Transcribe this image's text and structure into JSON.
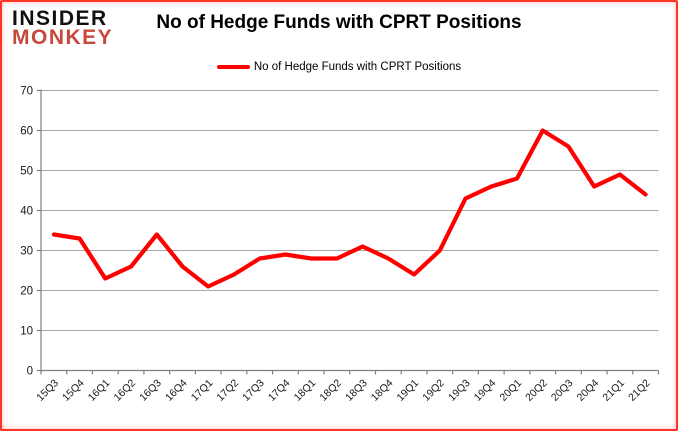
{
  "header": {
    "logo_line1": "INSIDER",
    "logo_line2": "MONKEY",
    "title": "No of Hedge Funds with CPRT Positions"
  },
  "legend": {
    "label": "No of Hedge Funds with CPRT Positions"
  },
  "colors": {
    "line": "#fe0000",
    "logo_black": "#111111",
    "logo_red": "#c7493d",
    "gridline": "#a6a6a6",
    "axis": "#808080",
    "tick_label": "#1a1a1a",
    "frame_red": "#ff190a"
  },
  "chart_data": {
    "type": "line",
    "title": "No of Hedge Funds with CPRT Positions",
    "categories": [
      "15Q3",
      "15Q4",
      "16Q1",
      "16Q2",
      "16Q3",
      "16Q4",
      "17Q1",
      "17Q2",
      "17Q3",
      "17Q4",
      "18Q1",
      "18Q2",
      "18Q3",
      "18Q4",
      "19Q1",
      "19Q2",
      "19Q3",
      "19Q4",
      "20Q1",
      "20Q2",
      "20Q3",
      "20Q4",
      "21Q1",
      "21Q2"
    ],
    "series": [
      {
        "name": "No of Hedge Funds with CPRT Positions",
        "color": "#fe0000",
        "values": [
          34,
          33,
          23,
          26,
          34,
          26,
          21,
          24,
          28,
          29,
          28,
          28,
          31,
          28,
          24,
          30,
          43,
          46,
          48,
          60,
          56,
          46,
          49,
          44
        ]
      }
    ],
    "xlabel": "",
    "ylabel": "",
    "ylim": [
      0,
      70
    ],
    "y_ticks": [
      0,
      10,
      20,
      30,
      40,
      50,
      60,
      70
    ],
    "grid": true,
    "legend_position": "top"
  }
}
